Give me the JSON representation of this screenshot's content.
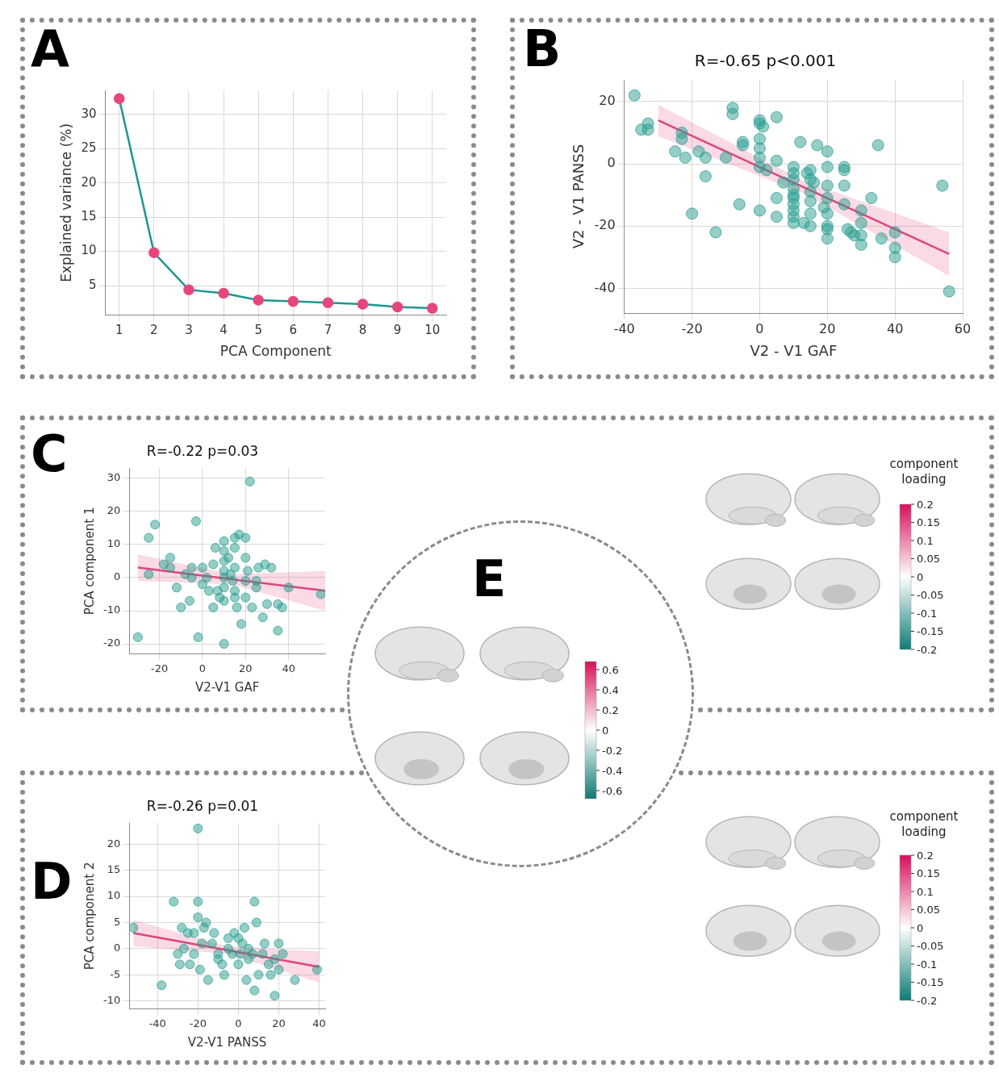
{
  "chart_data": [
    {
      "panel_label": "A",
      "type": "line",
      "x": [
        1,
        2,
        3,
        4,
        5,
        6,
        7,
        8,
        9,
        10
      ],
      "series": [
        {
          "values": [
            32.3,
            9.8,
            4.4,
            3.9,
            2.9,
            2.7,
            2.5,
            2.3,
            1.9,
            1.7
          ],
          "color": "#20958f",
          "colors": [
            "#e8457d",
            "#e8457d",
            "#e8457d",
            "#e8457d",
            "#e8457d",
            "#e8457d",
            "#e8457d",
            "#e8457d",
            "#e8457d",
            "#e8457d"
          ],
          "marker": "circle"
        }
      ],
      "x_label": "PCA Component",
      "y_label": "Explained variance (%)",
      "xlim": [
        0.6,
        10.4
      ],
      "xticks": [
        1,
        2,
        3,
        4,
        5,
        6,
        7,
        8,
        9,
        10
      ],
      "ylim": [
        0.7,
        33.5
      ],
      "yticks": [
        5,
        10,
        15,
        20,
        25,
        30
      ],
      "grid": true
    },
    {
      "panel_label": "B",
      "type": "scatter",
      "title": "R=-0.65 p<0.001",
      "x_label": "V2 - V1 GAF",
      "y_label": "V2 - V1 PANSS",
      "xlim": [
        -40,
        60
      ],
      "xticks": [
        -40,
        -20,
        0,
        20,
        40,
        60
      ],
      "ylim": [
        -48,
        27
      ],
      "yticks": [
        -40,
        -20,
        0,
        20
      ],
      "grid": true,
      "series": [
        {
          "type": "scatter",
          "color": "#2a9d8f",
          "marker": "circle",
          "x": [
            -37,
            -35,
            -33,
            -33,
            -23,
            -23,
            -25,
            -22,
            -20,
            -18,
            -16,
            -16,
            -13,
            -10,
            -8,
            -8,
            -6,
            -5,
            -5,
            0,
            0,
            0,
            0,
            0,
            0,
            0,
            1,
            2,
            5,
            5,
            5,
            5,
            7,
            10,
            10,
            10,
            10,
            10,
            10,
            10,
            10,
            10,
            10,
            12,
            13,
            14,
            15,
            15,
            15,
            15,
            15,
            15,
            16,
            17,
            19,
            20,
            20,
            20,
            20,
            20,
            20,
            20,
            20,
            25,
            25,
            25,
            25,
            26,
            27,
            28,
            30,
            30,
            30,
            30,
            33,
            35,
            36,
            40,
            40,
            40,
            54,
            56
          ],
          "values": [
            22,
            11,
            13,
            11,
            10,
            8,
            4,
            2,
            -16,
            4,
            -4,
            2,
            -22,
            2,
            18,
            16,
            -13,
            7,
            6,
            14,
            13,
            8,
            5,
            2,
            -1,
            -15,
            12,
            -2,
            15,
            1,
            -11,
            -17,
            -6,
            -1,
            -3,
            -5,
            -8,
            -10,
            -11,
            -13,
            -15,
            -17,
            -19,
            7,
            -19,
            -3,
            -2,
            -5,
            -9,
            -12,
            -16,
            -20,
            -6,
            6,
            -14,
            4,
            -1,
            -7,
            -11,
            -16,
            -20,
            -21,
            -24,
            -1,
            -2,
            -7,
            -13,
            -21,
            -22,
            -23,
            -15,
            -19,
            -23,
            -26,
            -11,
            6,
            -24,
            -30,
            -27,
            -22,
            -7,
            -41
          ]
        },
        {
          "type": "line",
          "color": "#e0457b",
          "x": [
            -30,
            13,
            56
          ],
          "values": [
            14,
            -7.5,
            -29
          ],
          "band_lower": [
            9,
            -9.5,
            -36
          ],
          "band_upper": [
            19,
            -5.5,
            -22
          ]
        }
      ]
    },
    {
      "panel_label": "C",
      "type": "scatter",
      "title": "R=-0.22 p=0.03",
      "x_label": "V2-V1 GAF",
      "y_label": "PCA component 1",
      "xlim": [
        -34,
        57
      ],
      "xticks": [
        -20,
        0,
        20,
        40
      ],
      "ylim": [
        -23,
        33
      ],
      "yticks": [
        -20,
        -10,
        0,
        10,
        20,
        30
      ],
      "grid": true,
      "series": [
        {
          "type": "scatter",
          "color": "#2a9d8f",
          "marker": "circle",
          "x": [
            -30,
            -25,
            -22,
            -25,
            -18,
            -15,
            -15,
            -12,
            -10,
            -8,
            -6,
            -5,
            -5,
            -3,
            -2,
            0,
            0,
            2,
            3,
            5,
            5,
            6,
            7,
            8,
            10,
            10,
            10,
            10,
            10,
            10,
            10,
            10,
            12,
            13,
            14,
            15,
            15,
            15,
            15,
            15,
            16,
            17,
            18,
            20,
            20,
            20,
            20,
            21,
            22,
            23,
            25,
            25,
            26,
            28,
            29,
            30,
            32,
            35,
            35,
            37,
            40,
            55
          ],
          "values": [
            -18,
            12,
            16,
            1,
            4,
            6,
            3,
            -3,
            -9,
            1,
            -7,
            0,
            3,
            17,
            -18,
            -2,
            3,
            0,
            -4,
            4,
            -9,
            9,
            -4,
            -6,
            11,
            8,
            5,
            2,
            0,
            -3,
            -7,
            -20,
            6,
            1,
            -1,
            12,
            9,
            3,
            -4,
            -6,
            -9,
            13,
            -14,
            12,
            6,
            -1,
            -6,
            2,
            29,
            -9,
            -1,
            -3,
            3,
            -12,
            4,
            -8,
            3,
            -16,
            -8,
            -9,
            -3,
            -5
          ]
        },
        {
          "type": "line",
          "color": "#e0457b",
          "x": [
            -30,
            13.5,
            57
          ],
          "values": [
            3,
            -0.5,
            -4
          ],
          "band_lower": [
            -1,
            -2,
            -10
          ],
          "band_upper": [
            7,
            1,
            2
          ]
        }
      ]
    },
    {
      "panel_label": "D",
      "type": "scatter",
      "title": "R=-0.26 p=0.01",
      "x_label": "V2-V1 PANSS",
      "y_label": "PCA component 2",
      "xlim": [
        -54,
        43
      ],
      "xticks": [
        -40,
        -20,
        0,
        20,
        40
      ],
      "ylim": [
        -11.5,
        24
      ],
      "yticks": [
        -10,
        -5,
        0,
        5,
        10,
        15,
        20
      ],
      "grid": true,
      "series": [
        {
          "type": "scatter",
          "color": "#2a9d8f",
          "marker": "circle",
          "x": [
            -52,
            -38,
            -32,
            -30,
            -29,
            -28,
            -27,
            -25,
            -24,
            -22,
            -22,
            -20,
            -20,
            -20,
            -19,
            -18,
            -17,
            -16,
            -15,
            -13,
            -12,
            -10,
            -10,
            -8,
            -7,
            -5,
            -5,
            -3,
            -2,
            0,
            0,
            1,
            2,
            3,
            4,
            5,
            5,
            7,
            8,
            8,
            9,
            10,
            12,
            13,
            15,
            16,
            18,
            18,
            20,
            20,
            22,
            28,
            39
          ],
          "values": [
            4,
            -7,
            9,
            -1,
            -3,
            4,
            0,
            3,
            -3,
            -1,
            3,
            23,
            9,
            6,
            -4,
            1,
            4,
            5,
            -6,
            1,
            3,
            -1,
            -2,
            -3,
            -5,
            2,
            0,
            -1,
            3,
            2,
            -3,
            -1,
            1,
            4,
            -6,
            0,
            -2,
            -1,
            9,
            -8,
            5,
            -5,
            -1,
            1,
            -3,
            -5,
            -9,
            -2,
            -4,
            1,
            -1,
            -6,
            -4
          ]
        },
        {
          "type": "line",
          "color": "#e0457b",
          "x": [
            -52,
            -6,
            40
          ],
          "values": [
            3,
            -0.25,
            -3.5
          ],
          "band_lower": [
            0.5,
            -1,
            -6.5
          ],
          "band_upper": [
            5.5,
            0.5,
            -0.5
          ]
        }
      ]
    }
  ],
  "brain_maps": [
    {
      "title": "component loading",
      "colorbar_range": [
        -0.2,
        0.2
      ],
      "colorbar_ticks": [
        0.2,
        0.15,
        0.1,
        0.05,
        0,
        -0.05,
        -0.1,
        -0.15,
        -0.2
      ],
      "colors": [
        "#0f7b74",
        "#ffffff",
        "#d6105a"
      ]
    },
    {
      "panel_label": "E",
      "colorbar_range": [
        -0.68,
        0.68
      ],
      "colorbar_ticks": [
        0.6,
        0.4,
        0.2,
        0,
        -0.2,
        -0.4,
        -0.6
      ],
      "colors": [
        "#0f7b74",
        "#ffffff",
        "#d6105a"
      ]
    },
    {
      "title": "component loading",
      "colorbar_range": [
        -0.2,
        0.2
      ],
      "colorbar_ticks": [
        0.2,
        0.15,
        0.1,
        0.05,
        0,
        -0.05,
        -0.1,
        -0.15,
        -0.2
      ],
      "colors": [
        "#0f7b74",
        "#ffffff",
        "#d6105a"
      ]
    }
  ]
}
